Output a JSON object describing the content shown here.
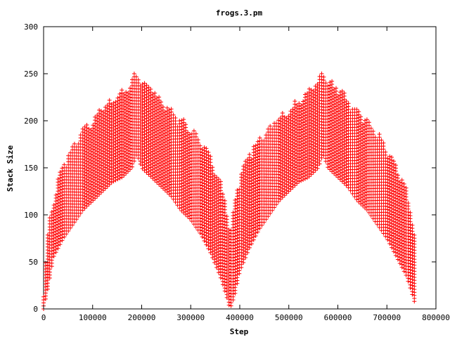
{
  "chart_data": {
    "type": "scatter",
    "title": "frogs.3.pm",
    "xlabel": "Step",
    "ylabel": "Stack Size",
    "xlim": [
      0,
      800000
    ],
    "ylim": [
      0,
      300
    ],
    "xticks": [
      0,
      100000,
      200000,
      300000,
      400000,
      500000,
      600000,
      700000,
      800000
    ],
    "yticks": [
      0,
      50,
      100,
      150,
      200,
      250,
      300
    ],
    "xtick_labels": [
      "0",
      "100000",
      "200000",
      "300000",
      "400000",
      "500000",
      "600000",
      "700000",
      "800000"
    ],
    "ytick_labels": [
      "0",
      "50",
      "100",
      "150",
      "200",
      "250",
      "300"
    ],
    "marker": "+",
    "color": "#ff0000",
    "grid": false,
    "legend": "none",
    "series": [
      {
        "description_points": "envelope of stack size over steps (upper and lower bounds of dense scatter)",
        "x": [
          0,
          10000,
          20000,
          40000,
          60000,
          80000,
          100000,
          120000,
          140000,
          160000,
          180000,
          190000,
          200000,
          220000,
          240000,
          260000,
          280000,
          300000,
          320000,
          340000,
          360000,
          375000,
          380000,
          390000,
          400000,
          420000,
          440000,
          460000,
          480000,
          500000,
          520000,
          540000,
          560000,
          570000,
          580000,
          600000,
          620000,
          640000,
          660000,
          680000,
          700000,
          720000,
          740000,
          755000,
          760000
        ],
        "upper": [
          20,
          95,
          120,
          160,
          175,
          195,
          205,
          220,
          225,
          235,
          245,
          257,
          245,
          240,
          225,
          215,
          205,
          195,
          185,
          165,
          140,
          110,
          80,
          120,
          145,
          170,
          185,
          195,
          210,
          215,
          225,
          235,
          245,
          255,
          245,
          240,
          225,
          215,
          205,
          190,
          175,
          155,
          130,
          95,
          40
        ],
        "lower": [
          0,
          25,
          55,
          75,
          90,
          105,
          115,
          125,
          135,
          140,
          150,
          165,
          150,
          140,
          130,
          120,
          105,
          95,
          80,
          60,
          35,
          10,
          0,
          15,
          40,
          65,
          85,
          100,
          115,
          125,
          135,
          140,
          150,
          165,
          150,
          140,
          130,
          115,
          105,
          90,
          75,
          55,
          35,
          10,
          0
        ]
      }
    ]
  }
}
